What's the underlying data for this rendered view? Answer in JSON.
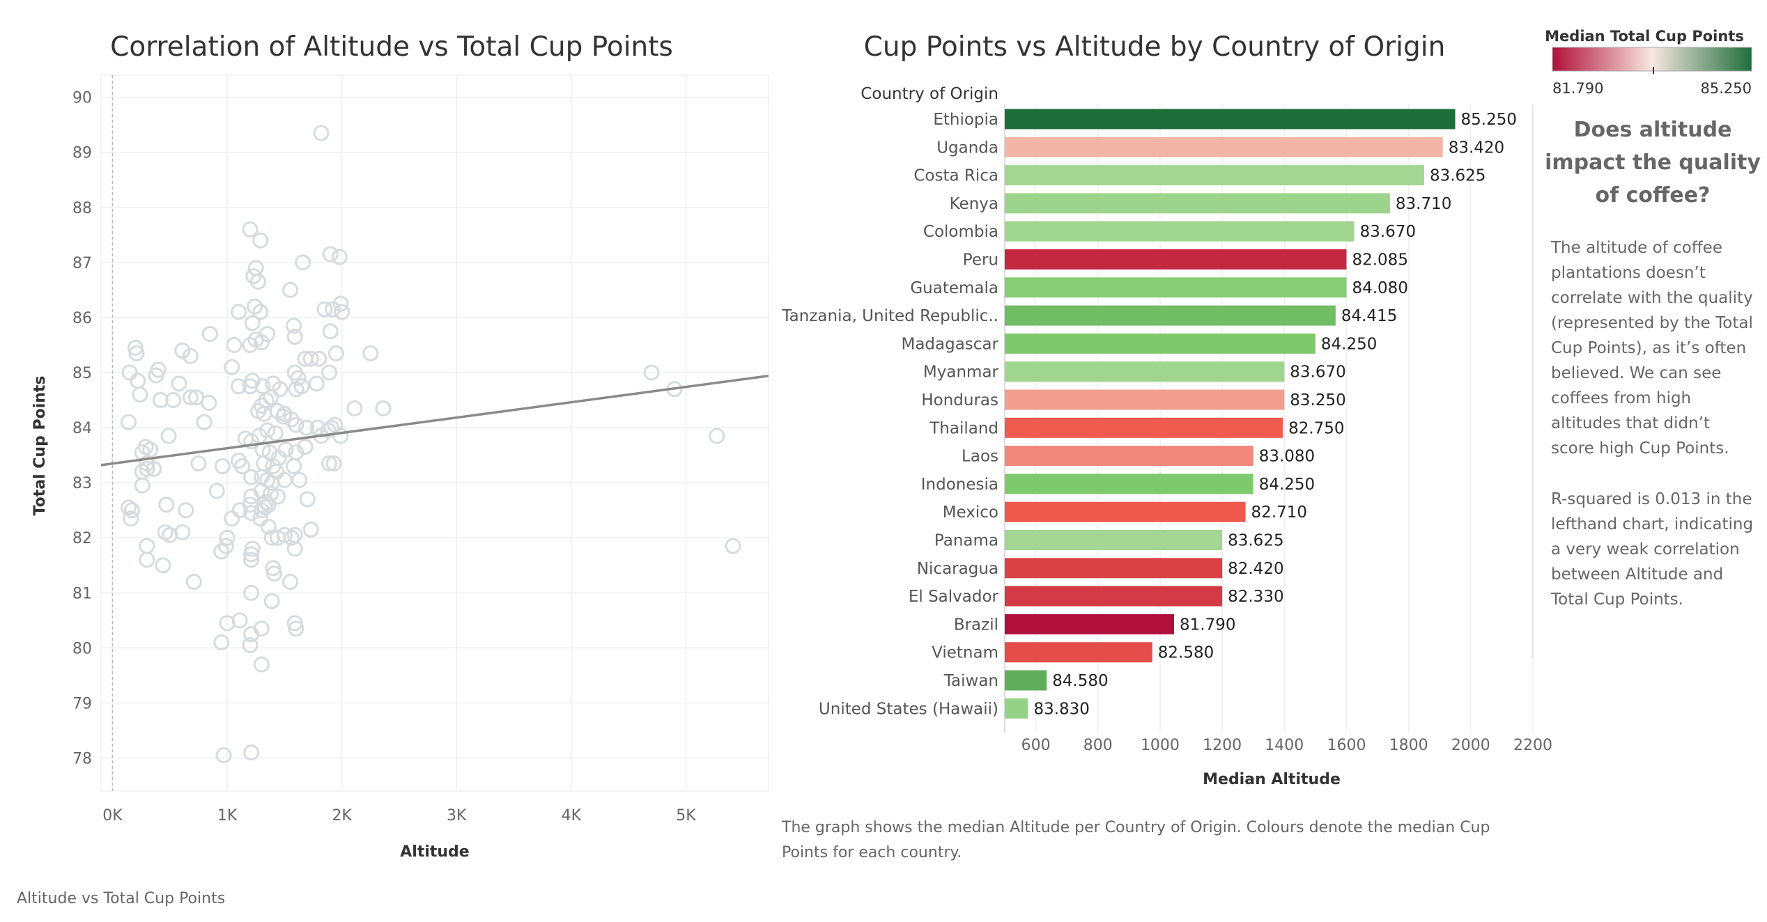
{
  "footer_caption": "Altitude vs Total Cup Points",
  "note": {
    "lines": [
      "The graph shows the median Altitude per Country of Origin. Colours denote the median Cup",
      "Points for each country."
    ]
  },
  "legend": {
    "title": "Median Total Cup Points",
    "min_label": "81.790",
    "max_label": "85.250",
    "colors": {
      "low": "#b0103a",
      "mid": "#f7e6e1",
      "high": "#1e6e3c"
    }
  },
  "side_panel": {
    "heading_lines": [
      "Does altitude",
      "impact the quality",
      "of coffee?"
    ],
    "paragraph1_lines": [
      "The altitude of coffee",
      "plantations doesn’t",
      "correlate with the quality",
      "(represented by the Total",
      "Cup Points), as it’s often",
      "believed. We can see",
      "coffees from high",
      "altitudes that didn’t",
      "score high Cup Points."
    ],
    "paragraph2_lines": [
      "R-squared is 0.013 in the",
      "lefthand chart, indicating",
      "a very weak correlation",
      "between Altitude and",
      "Total Cup Points."
    ]
  },
  "chart_data": [
    {
      "type": "scatter",
      "title": "Correlation of Altitude vs Total Cup Points",
      "xlabel": "Altitude",
      "ylabel": "Total Cup Points",
      "xlim": [
        -100,
        5720
      ],
      "ylim": [
        77.4,
        90.4
      ],
      "x_ticks": [
        0,
        1000,
        2000,
        3000,
        4000,
        5000
      ],
      "x_tick_labels": [
        "0K",
        "1K",
        "2K",
        "3K",
        "4K",
        "5K"
      ],
      "y_ticks": [
        78,
        79,
        80,
        81,
        82,
        83,
        84,
        85,
        86,
        87,
        88,
        89,
        90
      ],
      "grid": true,
      "marker_color": "#d6dbe0",
      "trend_color": "#8a8a8a",
      "trend_line": {
        "x": [
          -100,
          5720
        ],
        "y": [
          83.32,
          84.94
        ]
      },
      "points": [
        [
          1820,
          89.35
        ],
        [
          1200,
          87.6
        ],
        [
          1290,
          87.4
        ],
        [
          1250,
          86.9
        ],
        [
          1230,
          86.75
        ],
        [
          1270,
          86.65
        ],
        [
          1660,
          87.0
        ],
        [
          1900,
          87.15
        ],
        [
          1980,
          87.1
        ],
        [
          1550,
          86.5
        ],
        [
          1100,
          86.1
        ],
        [
          1240,
          86.2
        ],
        [
          1290,
          86.1
        ],
        [
          1220,
          85.9
        ],
        [
          1580,
          85.85
        ],
        [
          1590,
          85.65
        ],
        [
          1350,
          85.7
        ],
        [
          1250,
          85.6
        ],
        [
          1300,
          85.55
        ],
        [
          1200,
          85.5
        ],
        [
          1060,
          85.5
        ],
        [
          850,
          85.7
        ],
        [
          610,
          85.4
        ],
        [
          680,
          85.3
        ],
        [
          1850,
          86.15
        ],
        [
          1920,
          86.15
        ],
        [
          1990,
          86.25
        ],
        [
          2000,
          86.1
        ],
        [
          1900,
          85.75
        ],
        [
          1950,
          85.35
        ],
        [
          2250,
          85.35
        ],
        [
          1730,
          85.25
        ],
        [
          1800,
          85.25
        ],
        [
          1680,
          85.25
        ],
        [
          1590,
          85.0
        ],
        [
          1620,
          84.9
        ],
        [
          1890,
          85.0
        ],
        [
          1650,
          84.75
        ],
        [
          1780,
          84.8
        ],
        [
          1600,
          84.7
        ],
        [
          1400,
          84.8
        ],
        [
          1460,
          84.7
        ],
        [
          1310,
          84.75
        ],
        [
          1220,
          84.85
        ],
        [
          1200,
          84.75
        ],
        [
          1040,
          85.1
        ],
        [
          1100,
          84.75
        ],
        [
          200,
          85.45
        ],
        [
          210,
          85.35
        ],
        [
          150,
          85.0
        ],
        [
          220,
          84.85
        ],
        [
          400,
          85.05
        ],
        [
          380,
          84.95
        ],
        [
          240,
          84.6
        ],
        [
          580,
          84.8
        ],
        [
          420,
          84.5
        ],
        [
          530,
          84.5
        ],
        [
          680,
          84.55
        ],
        [
          730,
          84.55
        ],
        [
          840,
          84.45
        ],
        [
          1340,
          84.5
        ],
        [
          1380,
          84.55
        ],
        [
          1300,
          84.4
        ],
        [
          1270,
          84.3
        ],
        [
          1320,
          84.25
        ],
        [
          1440,
          84.3
        ],
        [
          1490,
          84.2
        ],
        [
          1500,
          84.25
        ],
        [
          1560,
          84.15
        ],
        [
          1600,
          84.05
        ],
        [
          1690,
          84.0
        ],
        [
          1790,
          84.0
        ],
        [
          1880,
          83.95
        ],
        [
          1910,
          84.0
        ],
        [
          1940,
          84.05
        ],
        [
          1990,
          83.85
        ],
        [
          2110,
          84.35
        ],
        [
          2360,
          84.35
        ],
        [
          140,
          84.1
        ],
        [
          800,
          84.1
        ],
        [
          1350,
          83.95
        ],
        [
          1420,
          83.9
        ],
        [
          1280,
          83.85
        ],
        [
          1210,
          83.75
        ],
        [
          1160,
          83.8
        ],
        [
          1310,
          83.6
        ],
        [
          1370,
          83.55
        ],
        [
          1510,
          83.6
        ],
        [
          1450,
          83.45
        ],
        [
          1600,
          83.55
        ],
        [
          1680,
          83.65
        ],
        [
          1820,
          83.85
        ],
        [
          1890,
          83.35
        ],
        [
          1930,
          83.35
        ],
        [
          290,
          83.65
        ],
        [
          260,
          83.55
        ],
        [
          330,
          83.6
        ],
        [
          300,
          83.35
        ],
        [
          260,
          83.2
        ],
        [
          300,
          83.25
        ],
        [
          360,
          83.25
        ],
        [
          490,
          83.85
        ],
        [
          750,
          83.35
        ],
        [
          960,
          83.3
        ],
        [
          1100,
          83.4
        ],
        [
          1130,
          83.3
        ],
        [
          1320,
          83.35
        ],
        [
          1400,
          83.3
        ],
        [
          1580,
          83.3
        ],
        [
          1430,
          83.2
        ],
        [
          1350,
          83.05
        ],
        [
          1300,
          83.1
        ],
        [
          1210,
          83.1
        ],
        [
          1390,
          83.0
        ],
        [
          1500,
          83.05
        ],
        [
          1630,
          83.05
        ],
        [
          260,
          82.95
        ],
        [
          910,
          82.85
        ],
        [
          1210,
          82.75
        ],
        [
          1300,
          82.85
        ],
        [
          1340,
          82.65
        ],
        [
          1380,
          82.8
        ],
        [
          1440,
          82.75
        ],
        [
          1700,
          82.7
        ],
        [
          140,
          82.55
        ],
        [
          170,
          82.5
        ],
        [
          160,
          82.35
        ],
        [
          470,
          82.6
        ],
        [
          640,
          82.5
        ],
        [
          1110,
          82.5
        ],
        [
          1200,
          82.6
        ],
        [
          1210,
          82.45
        ],
        [
          1300,
          82.5
        ],
        [
          1330,
          82.55
        ],
        [
          1360,
          82.6
        ],
        [
          1040,
          82.35
        ],
        [
          1290,
          82.35
        ],
        [
          1360,
          82.2
        ],
        [
          1440,
          82.0
        ],
        [
          1500,
          82.05
        ],
        [
          1560,
          82.0
        ],
        [
          1590,
          82.05
        ],
        [
          1730,
          82.15
        ],
        [
          460,
          82.1
        ],
        [
          500,
          82.05
        ],
        [
          610,
          82.1
        ],
        [
          1000,
          82.0
        ],
        [
          990,
          81.85
        ],
        [
          950,
          81.75
        ],
        [
          1220,
          81.8
        ],
        [
          1390,
          82.0
        ],
        [
          1590,
          81.8
        ],
        [
          300,
          81.85
        ],
        [
          300,
          81.6
        ],
        [
          440,
          81.5
        ],
        [
          710,
          81.2
        ],
        [
          1210,
          81.6
        ],
        [
          1210,
          81.7
        ],
        [
          1400,
          81.45
        ],
        [
          1410,
          81.35
        ],
        [
          1550,
          81.2
        ],
        [
          1210,
          81.0
        ],
        [
          1390,
          80.85
        ],
        [
          1000,
          80.45
        ],
        [
          1110,
          80.5
        ],
        [
          1590,
          80.45
        ],
        [
          1600,
          80.35
        ],
        [
          1300,
          80.35
        ],
        [
          1210,
          80.25
        ],
        [
          950,
          80.1
        ],
        [
          1200,
          80.05
        ],
        [
          1300,
          79.7
        ],
        [
          970,
          78.05
        ],
        [
          1210,
          78.1
        ],
        [
          4700,
          85.0
        ],
        [
          4900,
          84.7
        ],
        [
          5270,
          83.85
        ],
        [
          5410,
          81.85
        ]
      ]
    },
    {
      "type": "bar",
      "orientation": "horizontal",
      "title": "Cup Points vs Altitude by Country of Origin",
      "category_header": "Country of Origin",
      "xlabel": "Median Altitude",
      "xlim": [
        500,
        2200
      ],
      "x_ticks": [
        600,
        800,
        1000,
        1200,
        1400,
        1600,
        1800,
        2000,
        2200
      ],
      "categories": [
        "Ethiopia",
        "Uganda",
        "Costa Rica",
        "Kenya",
        "Colombia",
        "Peru",
        "Guatemala",
        "Tanzania, United Republic..",
        "Madagascar",
        "Myanmar",
        "Honduras",
        "Thailand",
        "Laos",
        "Indonesia",
        "Mexico",
        "Panama",
        "Nicaragua",
        "El Salvador",
        "Brazil",
        "Vietnam",
        "Taiwan",
        "United States (Hawaii)"
      ],
      "values": [
        1950,
        1910,
        1850,
        1740,
        1625,
        1600,
        1600,
        1565,
        1500,
        1400,
        1400,
        1395,
        1300,
        1300,
        1275,
        1200,
        1200,
        1200,
        1045,
        975,
        635,
        575
      ],
      "data_labels": [
        "85.250",
        "83.420",
        "83.625",
        "83.710",
        "83.670",
        "82.085",
        "84.080",
        "84.415",
        "84.250",
        "83.670",
        "83.250",
        "82.750",
        "83.080",
        "84.250",
        "82.710",
        "83.625",
        "82.420",
        "82.330",
        "81.790",
        "82.580",
        "84.580",
        "83.830"
      ],
      "color_values": [
        85.25,
        83.42,
        83.625,
        83.71,
        83.67,
        82.085,
        84.08,
        84.415,
        84.25,
        83.67,
        83.25,
        82.75,
        83.08,
        84.25,
        82.71,
        83.625,
        82.42,
        82.33,
        81.79,
        82.58,
        84.58,
        83.83
      ],
      "color_range": [
        81.79,
        85.25
      ],
      "grid": true
    }
  ]
}
